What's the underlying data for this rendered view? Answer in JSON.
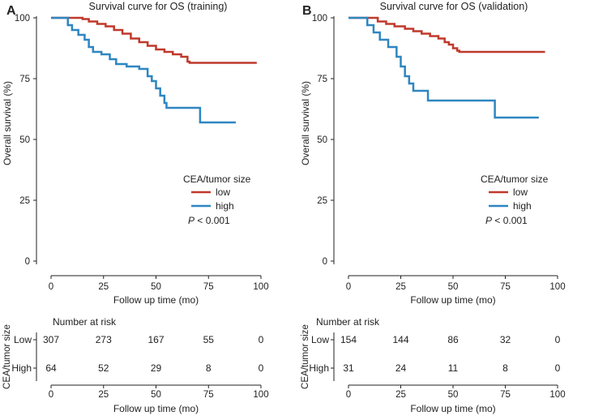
{
  "figure": {
    "panel_letters": [
      "A",
      "B"
    ],
    "number_at_risk_label": "Number at risk",
    "risk_ylabel": "CEA/tumor size"
  },
  "colors": {
    "low": "#c0392b",
    "high": "#2e86c1"
  },
  "chart_data": [
    {
      "type": "line",
      "title": "Survival curve for OS (training)",
      "xlabel": "Follow up time (mo)",
      "ylabel": "Overall survival (%)",
      "xlim": [
        0,
        100
      ],
      "ylim": [
        0,
        100
      ],
      "xticks": [
        0,
        25,
        50,
        75,
        100
      ],
      "yticks": [
        0,
        25,
        50,
        75,
        100
      ],
      "legend": {
        "title": "CEA/tumor size",
        "entries": [
          "low",
          "high"
        ],
        "placement": "center-right"
      },
      "annotation": {
        "italic": "P",
        "rest": " < 0.001"
      },
      "series": [
        {
          "name": "low",
          "color": "#c0392b",
          "points": [
            [
              0,
              100
            ],
            [
              12,
              100
            ],
            [
              15,
              99.5
            ],
            [
              18,
              98.5
            ],
            [
              22,
              97.5
            ],
            [
              26,
              96.5
            ],
            [
              30,
              95
            ],
            [
              34,
              93.5
            ],
            [
              38,
              91.5
            ],
            [
              42,
              90
            ],
            [
              46,
              88.5
            ],
            [
              50,
              87
            ],
            [
              54,
              86
            ],
            [
              58,
              85
            ],
            [
              62,
              84
            ],
            [
              65,
              82
            ],
            [
              66,
              81.5
            ],
            [
              98,
              81.5
            ]
          ]
        },
        {
          "name": "high",
          "color": "#2e86c1",
          "points": [
            [
              0,
              100
            ],
            [
              6,
              100
            ],
            [
              8,
              97
            ],
            [
              10,
              95
            ],
            [
              13,
              93
            ],
            [
              16,
              91
            ],
            [
              18,
              88
            ],
            [
              20,
              86
            ],
            [
              24,
              85
            ],
            [
              28,
              83
            ],
            [
              31,
              81
            ],
            [
              36,
              80
            ],
            [
              42,
              79
            ],
            [
              46,
              76
            ],
            [
              48,
              74
            ],
            [
              50,
              71
            ],
            [
              52,
              68
            ],
            [
              54,
              65
            ],
            [
              55,
              63
            ],
            [
              70,
              63
            ],
            [
              71,
              57
            ],
            [
              88,
              57
            ]
          ]
        }
      ],
      "risk_table": {
        "times": [
          0,
          25,
          50,
          75,
          100
        ],
        "rows": [
          {
            "label": "Low",
            "values": [
              "307",
              "273",
              "167",
              "55",
              "0"
            ]
          },
          {
            "label": "High",
            "values": [
              "64",
              "52",
              "29",
              "8",
              "0"
            ]
          }
        ],
        "xlabel": "Follow up time (mo)"
      }
    },
    {
      "type": "line",
      "title": "Survival curve for OS (validation)",
      "xlabel": "Follow up time (mo)",
      "ylabel": "Overall survival (%)",
      "xlim": [
        0,
        100
      ],
      "ylim": [
        0,
        100
      ],
      "xticks": [
        0,
        25,
        50,
        75,
        100
      ],
      "yticks": [
        0,
        25,
        50,
        75,
        100
      ],
      "legend": {
        "title": "CEA/tumor size",
        "entries": [
          "low",
          "high"
        ],
        "placement": "center-right"
      },
      "annotation": {
        "italic": "P",
        "rest": " < 0.001"
      },
      "series": [
        {
          "name": "low",
          "color": "#c0392b",
          "points": [
            [
              0,
              100
            ],
            [
              10,
              100
            ],
            [
              14,
              98.5
            ],
            [
              18,
              97.5
            ],
            [
              22,
              96.5
            ],
            [
              27,
              95.5
            ],
            [
              31,
              94.5
            ],
            [
              35,
              93.5
            ],
            [
              39,
              92.5
            ],
            [
              43,
              91.5
            ],
            [
              46,
              90
            ],
            [
              48,
              89
            ],
            [
              50,
              87.5
            ],
            [
              52,
              86.5
            ],
            [
              53,
              86
            ],
            [
              94,
              86
            ]
          ]
        },
        {
          "name": "high",
          "color": "#2e86c1",
          "points": [
            [
              0,
              100
            ],
            [
              7,
              100
            ],
            [
              9,
              97
            ],
            [
              12,
              94
            ],
            [
              15,
              91
            ],
            [
              19,
              88
            ],
            [
              23,
              84
            ],
            [
              25,
              80
            ],
            [
              27,
              76
            ],
            [
              29,
              73
            ],
            [
              31,
              70
            ],
            [
              37,
              70
            ],
            [
              38,
              66
            ],
            [
              69,
              66
            ],
            [
              70,
              59
            ],
            [
              91,
              59
            ]
          ]
        }
      ],
      "risk_table": {
        "times": [
          0,
          25,
          50,
          75,
          100
        ],
        "rows": [
          {
            "label": "Low",
            "values": [
              "154",
              "144",
              "86",
              "32",
              "0"
            ]
          },
          {
            "label": "High",
            "values": [
              "31",
              "24",
              "11",
              "8",
              "0"
            ]
          }
        ],
        "xlabel": "Follow up time (mo)"
      }
    }
  ]
}
